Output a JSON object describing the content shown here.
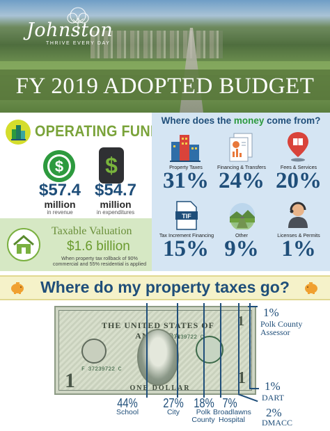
{
  "header": {
    "logo_name": "Johnston",
    "logo_tagline": "THRIVE EVERY DAY",
    "title": "FY 2019 ADOPTED BUDGET"
  },
  "operating_funds": {
    "title": "OPERATING FUNDS",
    "revenue": {
      "amount": "$57.4",
      "unit": "million",
      "label": "in revenue",
      "icon": "coin-dollar-icon"
    },
    "expenditures": {
      "amount": "$54.7",
      "unit": "million",
      "label": "in expenditures",
      "icon": "phone-dollar-icon"
    }
  },
  "taxable_valuation": {
    "title": "Taxable Valuation",
    "value": "$1.6 billion",
    "note": "When property tax rollback of 90% commercial and 55% residential is applied",
    "icon": "house-icon"
  },
  "money_sources": {
    "question_start": "Where does the ",
    "question_highlight": "money",
    "question_end": " come from?",
    "items": [
      {
        "label": "Property Taxes",
        "percent": "31%",
        "icon": "city-buildings-icon"
      },
      {
        "label": "Financing & Transfers",
        "percent": "24%",
        "icon": "documents-chart-icon"
      },
      {
        "label": "Fees & Services",
        "percent": "20%",
        "icon": "map-pin-book-icon"
      },
      {
        "label": "Tax Increment Financing",
        "percent": "15%",
        "icon": "tif-document-icon",
        "icon_text": "TIF"
      },
      {
        "label": "Other",
        "percent": "9%",
        "icon": "road-landscape-icon"
      },
      {
        "label": "Licenses & Permits",
        "percent": "1%",
        "icon": "person-headset-icon"
      }
    ]
  },
  "property_taxes": {
    "title": "Where do my property taxes go?",
    "icon": "piggy-bank-icon",
    "bill": {
      "header": "THE UNITED STATES OF AMERICA",
      "serial": "F 37239722 C",
      "denomination": "1",
      "footer": "ONE DOLLAR"
    },
    "breakdown": [
      {
        "percent": "44%",
        "label": "School"
      },
      {
        "percent": "27%",
        "label": "City"
      },
      {
        "percent": "18%",
        "label": "Polk County"
      },
      {
        "percent": "7%",
        "label": "Broadlawns Hospital"
      },
      {
        "percent": "2%",
        "label": "DMACC"
      },
      {
        "percent": "1%",
        "label": "DART"
      },
      {
        "percent": "1%",
        "label": "Polk County Assessor"
      }
    ]
  },
  "colors": {
    "navy": "#1f4e79",
    "green": "#7aa33a",
    "money_green": "#2d9a3e",
    "panel_blue": "#d5e5f3",
    "panel_green": "#d6e8c4",
    "band_yellow": "#f5f2c9"
  }
}
